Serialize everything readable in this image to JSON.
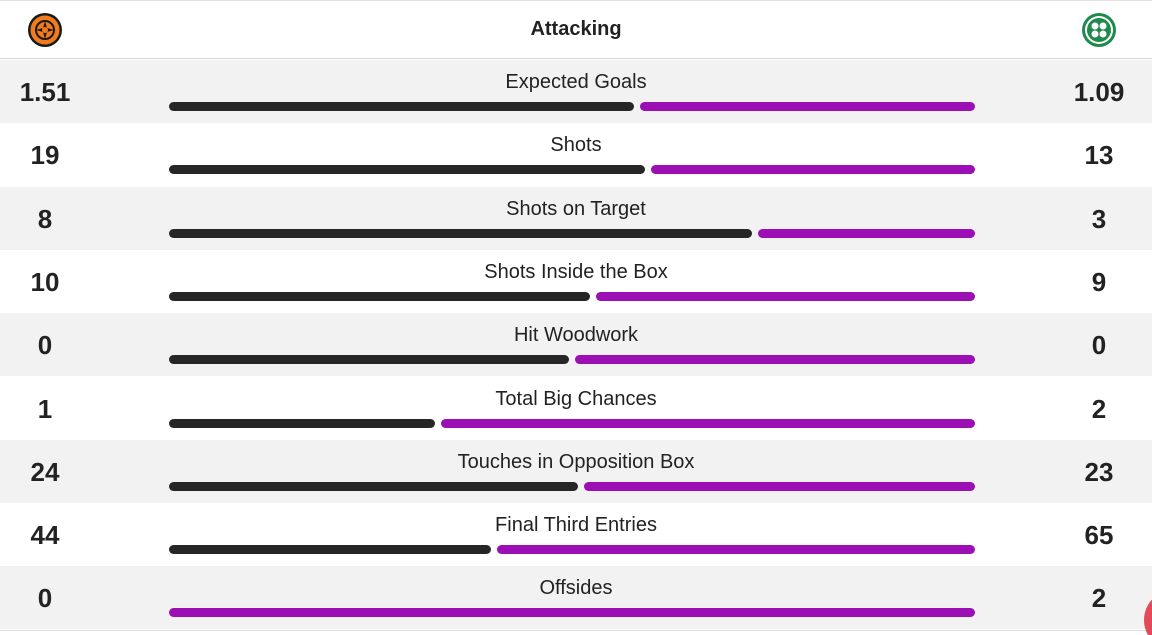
{
  "header": {
    "title": "Attacking",
    "home_logo_icon": "dundee-united-crest-icon",
    "away_logo_icon": "celtic-crest-icon"
  },
  "colors": {
    "home_bar": "#262626",
    "away_bar": "#9c0fb5",
    "row_shade": "#f2f2f2"
  },
  "stats": [
    {
      "label": "Expected Goals",
      "home": "1.51",
      "away": "1.09",
      "home_share": 0.5808
    },
    {
      "label": "Shots",
      "home": "19",
      "away": "13",
      "home_share": 0.5938
    },
    {
      "label": "Shots on Target",
      "home": "8",
      "away": "3",
      "home_share": 0.7273
    },
    {
      "label": "Shots Inside the Box",
      "home": "10",
      "away": "9",
      "home_share": 0.5263
    },
    {
      "label": "Hit Woodwork",
      "home": "0",
      "away": "0",
      "home_share": 0.5
    },
    {
      "label": "Total Big Chances",
      "home": "1",
      "away": "2",
      "home_share": 0.3333
    },
    {
      "label": "Touches in Opposition Box",
      "home": "24",
      "away": "23",
      "home_share": 0.5106
    },
    {
      "label": "Final Third Entries",
      "home": "44",
      "away": "65",
      "home_share": 0.4037
    },
    {
      "label": "Offsides",
      "home": "0",
      "away": "2",
      "home_share": 0.0
    }
  ]
}
